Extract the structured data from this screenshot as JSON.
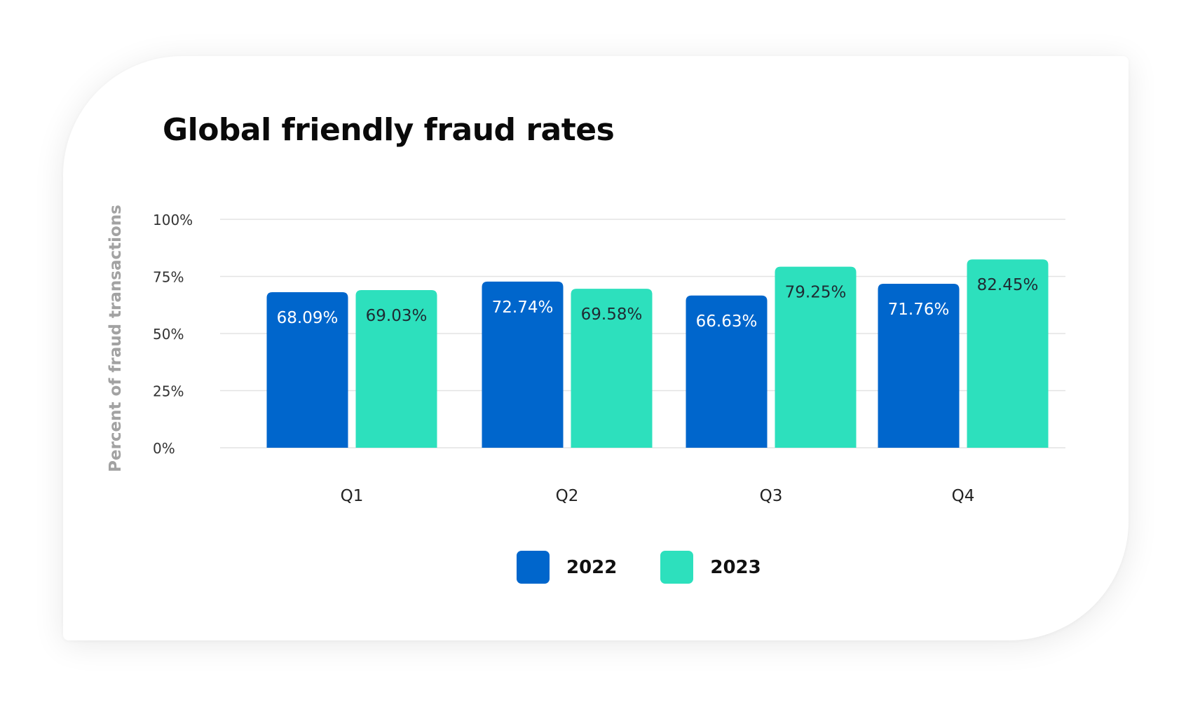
{
  "chart_data": {
    "type": "bar",
    "title": "Global friendly fraud rates",
    "xlabel": "",
    "ylabel": "Percent of fraud transactions",
    "ylim": [
      0,
      100
    ],
    "yticks": [
      "0%",
      "25%",
      "50%",
      "75%",
      "100%"
    ],
    "ytick_values": [
      0,
      25,
      50,
      75,
      100
    ],
    "categories": [
      "Q1",
      "Q2",
      "Q3",
      "Q4"
    ],
    "series": [
      {
        "name": "2022",
        "color": "#0066cc",
        "label_color": "#ffffff",
        "values": [
          68.09,
          72.74,
          66.63,
          71.76
        ],
        "labels": [
          "68.09%",
          "72.74%",
          "66.63%",
          "71.76%"
        ]
      },
      {
        "name": "2023",
        "color": "#2de0bd",
        "label_color": "#1f2b33",
        "values": [
          69.03,
          69.58,
          79.25,
          82.45
        ],
        "labels": [
          "69.03%",
          "69.58%",
          "79.25%",
          "82.45%"
        ]
      }
    ],
    "grid": true,
    "legend_position": "bottom"
  }
}
